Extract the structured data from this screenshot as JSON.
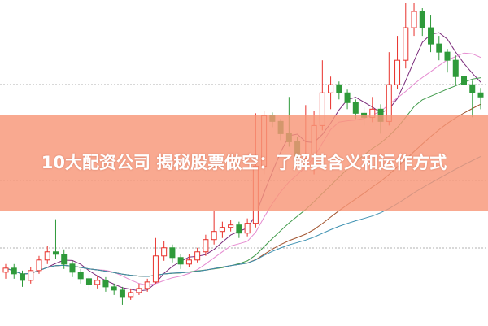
{
  "title": "10大配资公司 揭秘股票做空：了解其含义和运作方式",
  "colors": {
    "up": "#e8302a",
    "down": "#2f9a3a",
    "banner": "#f8967a",
    "grid": "#999999"
  },
  "chart_data": {
    "type": "candlestick",
    "title": "",
    "xlabel": "",
    "ylabel": "",
    "grid": true,
    "ylim": [
      0,
      400
    ],
    "candles": [
      [
        70,
        80,
        62,
        75
      ],
      [
        75,
        80,
        62,
        68
      ],
      [
        68,
        72,
        52,
        60
      ],
      [
        60,
        76,
        56,
        72
      ],
      [
        72,
        90,
        68,
        85
      ],
      [
        85,
        102,
        80,
        95
      ],
      [
        95,
        135,
        86,
        92
      ],
      [
        92,
        98,
        74,
        80
      ],
      [
        80,
        84,
        64,
        70
      ],
      [
        70,
        74,
        56,
        62
      ],
      [
        62,
        66,
        48,
        55
      ],
      [
        55,
        66,
        50,
        60
      ],
      [
        60,
        64,
        46,
        52
      ],
      [
        52,
        56,
        42,
        48
      ],
      [
        48,
        52,
        30,
        40
      ],
      [
        40,
        50,
        36,
        45
      ],
      [
        45,
        56,
        42,
        50
      ],
      [
        50,
        62,
        46,
        58
      ],
      [
        58,
        112,
        56,
        90
      ],
      [
        90,
        108,
        84,
        100
      ],
      [
        100,
        104,
        82,
        88
      ],
      [
        88,
        92,
        74,
        80
      ],
      [
        80,
        92,
        76,
        85
      ],
      [
        85,
        100,
        82,
        95
      ],
      [
        95,
        116,
        90,
        110
      ],
      [
        110,
        145,
        104,
        120
      ],
      [
        120,
        132,
        112,
        125
      ],
      [
        125,
        134,
        120,
        128
      ],
      [
        128,
        132,
        112,
        118
      ],
      [
        118,
        136,
        114,
        130
      ],
      [
        130,
        265,
        125,
        200
      ],
      [
        200,
        268,
        190,
        262
      ],
      [
        262,
        266,
        248,
        255
      ],
      [
        255,
        258,
        232,
        240
      ],
      [
        240,
        285,
        224,
        230
      ],
      [
        230,
        236,
        200,
        210
      ],
      [
        210,
        275,
        195,
        215
      ],
      [
        215,
        268,
        190,
        250
      ],
      [
        250,
        330,
        244,
        290
      ],
      [
        290,
        310,
        270,
        300
      ],
      [
        300,
        304,
        282,
        290
      ],
      [
        290,
        294,
        270,
        278
      ],
      [
        278,
        282,
        258,
        265
      ],
      [
        265,
        272,
        250,
        260
      ],
      [
        260,
        285,
        254,
        270
      ],
      [
        270,
        276,
        240,
        255
      ],
      [
        255,
        340,
        250,
        300
      ],
      [
        300,
        360,
        295,
        330
      ],
      [
        330,
        400,
        320,
        370
      ],
      [
        370,
        400,
        360,
        390
      ],
      [
        390,
        394,
        360,
        370
      ],
      [
        370,
        385,
        340,
        350
      ],
      [
        350,
        360,
        330,
        340
      ],
      [
        340,
        344,
        315,
        330
      ],
      [
        330,
        336,
        300,
        310
      ],
      [
        310,
        316,
        290,
        300
      ],
      [
        300,
        305,
        260,
        290
      ],
      [
        290,
        296,
        270,
        285
      ]
    ],
    "moving_averages": [
      {
        "period": 5,
        "color": "#7a2a7a"
      },
      {
        "period": 10,
        "color": "#e58ad0"
      },
      {
        "period": 20,
        "color": "#3f9a4a"
      },
      {
        "period": 30,
        "color": "#a0522d"
      },
      {
        "period": 45,
        "color": "#3a8fb0"
      }
    ]
  }
}
